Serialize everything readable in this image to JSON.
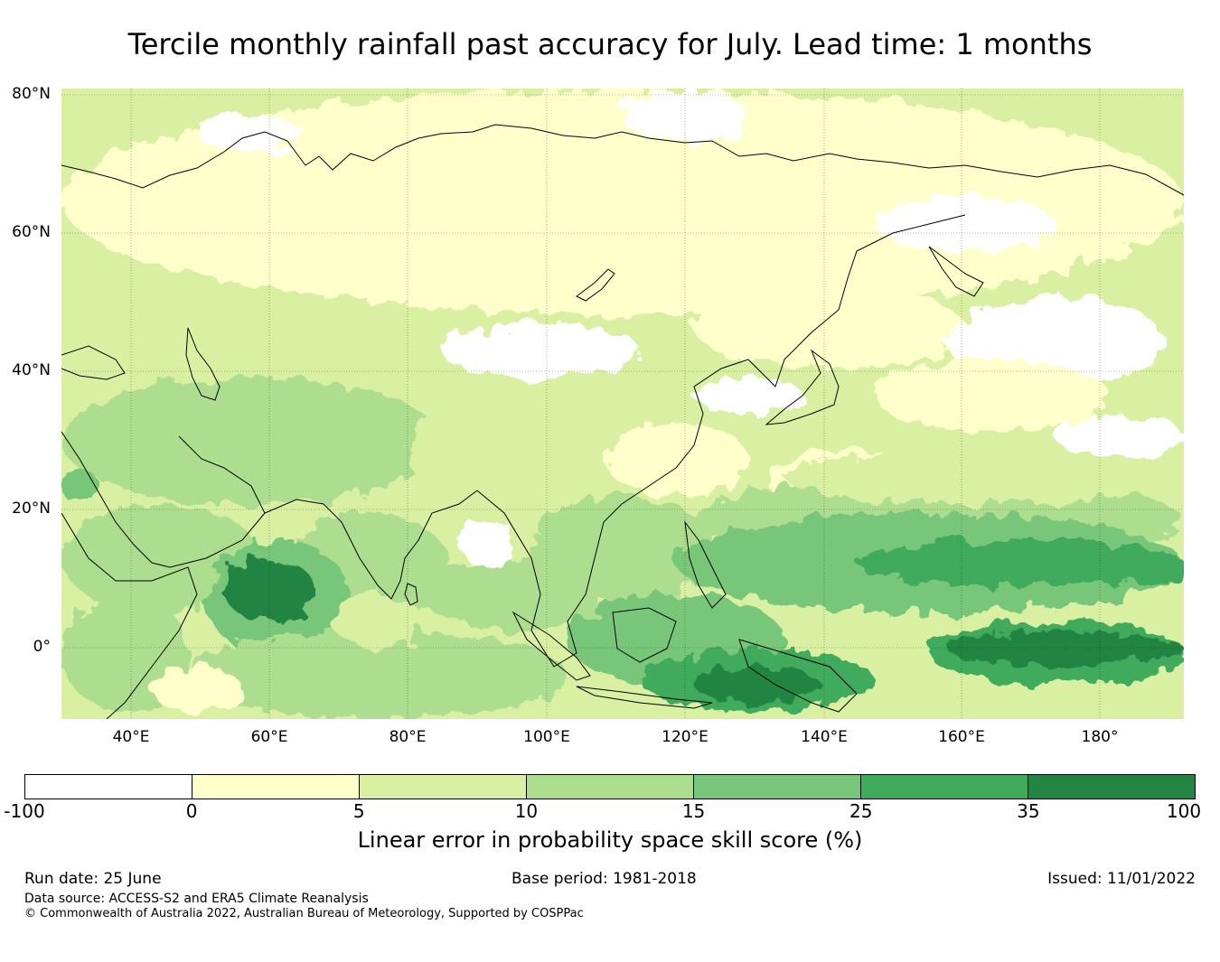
{
  "title": "Tercile monthly rainfall past accuracy for July. Lead time: 1 months",
  "map": {
    "lat_labels": [
      "80°N",
      "60°N",
      "40°N",
      "20°N",
      "0°"
    ],
    "lon_labels": [
      "40°E",
      "60°E",
      "80°E",
      "100°E",
      "120°E",
      "140°E",
      "160°E",
      "180°"
    ]
  },
  "colorbar": {
    "ticks": [
      "-100",
      "0",
      "5",
      "10",
      "15",
      "25",
      "35",
      "100"
    ],
    "colors": [
      "#ffffff",
      "#ffffcc",
      "#d9f0a3",
      "#addd8e",
      "#78c679",
      "#41ab5d",
      "#238443"
    ],
    "label": "Linear error in probability space skill score (%)"
  },
  "footer": {
    "run_date": "Run date: 25 June",
    "base_period": "Base period: 1981-2018",
    "issued": "Issued: 11/01/2022",
    "data_source": "Data source: ACCESS-S2 and ERA5 Climate Reanalysis",
    "copyright": "© Commonwealth of Australia 2022, Australian Bureau of Meteorology, Supported by COSPPac"
  }
}
